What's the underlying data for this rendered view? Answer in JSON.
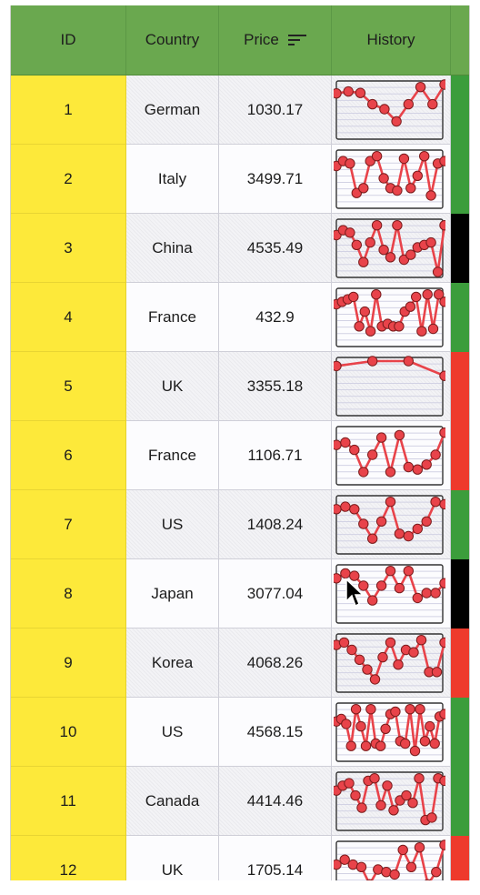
{
  "table": {
    "columns": [
      {
        "key": "id",
        "label": "ID"
      },
      {
        "key": "country",
        "label": "Country"
      },
      {
        "key": "price",
        "label": "Price",
        "sort_icon": "sort-lines-icon"
      },
      {
        "key": "history",
        "label": "History"
      }
    ],
    "colors": {
      "header_bg": "#6aa84f",
      "id_bg": "#fde93a",
      "spark_line": "#e8434a",
      "status_green": "#3c9d3c",
      "status_red": "#ee3a2c",
      "status_black": "#000000"
    },
    "rows": [
      {
        "id": "1",
        "country": "German",
        "price": "1030.17",
        "status": "green",
        "history": [
          0.82,
          0.86,
          0.83,
          0.6,
          0.5,
          0.25,
          0.6,
          0.95,
          0.6,
          1.0
        ]
      },
      {
        "id": "2",
        "country": "Italy",
        "price": "3499.71",
        "status": "green",
        "history": [
          0.75,
          0.85,
          0.8,
          0.2,
          0.3,
          0.85,
          0.95,
          0.5,
          0.3,
          0.25,
          0.9,
          0.3,
          0.55,
          0.95,
          0.15,
          0.8,
          0.85
        ]
      },
      {
        "id": "3",
        "country": "China",
        "price": "4535.49",
        "status": "black",
        "history": [
          0.75,
          0.85,
          0.8,
          0.55,
          0.2,
          0.6,
          0.95,
          0.45,
          0.3,
          0.95,
          0.25,
          0.35,
          0.5,
          0.55,
          0.6,
          0.0,
          0.95
        ]
      },
      {
        "id": "4",
        "country": "France",
        "price": "432.9",
        "status": "green",
        "history": [
          0.75,
          0.8,
          0.85,
          0.9,
          0.3,
          0.6,
          0.2,
          0.95,
          0.3,
          0.35,
          0.3,
          0.3,
          0.6,
          0.7,
          0.9,
          0.2,
          0.95,
          0.25,
          0.95,
          0.8
        ]
      },
      {
        "id": "5",
        "country": "UK",
        "price": "3355.18",
        "status": "red",
        "history": [
          0.9,
          1.0,
          1.0,
          0.7
        ]
      },
      {
        "id": "6",
        "country": "France",
        "price": "1106.71",
        "status": "red",
        "history": [
          0.7,
          0.75,
          0.6,
          0.15,
          0.5,
          0.85,
          0.15,
          0.9,
          0.25,
          0.2,
          0.3,
          0.5,
          0.95
        ]
      },
      {
        "id": "7",
        "country": "US",
        "price": "1408.24",
        "status": "green",
        "history": [
          0.8,
          0.85,
          0.8,
          0.5,
          0.2,
          0.55,
          0.95,
          0.3,
          0.25,
          0.4,
          0.55,
          0.95,
          0.9
        ]
      },
      {
        "id": "8",
        "country": "Japan",
        "price": "3077.04",
        "status": "black",
        "history": [
          0.8,
          0.9,
          0.85,
          0.65,
          0.35,
          0.65,
          0.95,
          0.6,
          0.95,
          0.4,
          0.5,
          0.5,
          0.7
        ]
      },
      {
        "id": "9",
        "country": "Korea",
        "price": "4068.26",
        "status": "red",
        "history": [
          0.85,
          0.9,
          0.75,
          0.55,
          0.35,
          0.15,
          0.6,
          0.9,
          0.45,
          0.75,
          0.7,
          0.95,
          0.3,
          0.3,
          0.9
        ]
      },
      {
        "id": "10",
        "country": "US",
        "price": "4568.15",
        "status": "green",
        "history": [
          0.7,
          0.75,
          0.65,
          0.2,
          0.95,
          0.6,
          0.2,
          0.95,
          0.25,
          0.2,
          0.55,
          0.85,
          0.9,
          0.3,
          0.25,
          0.95,
          0.1,
          0.95,
          0.3,
          0.6,
          0.25,
          0.8,
          0.85
        ]
      },
      {
        "id": "11",
        "country": "Canada",
        "price": "4414.46",
        "status": "green",
        "history": [
          0.7,
          0.8,
          0.85,
          0.6,
          0.35,
          0.9,
          0.95,
          0.4,
          0.8,
          0.3,
          0.5,
          0.6,
          0.45,
          0.95,
          0.1,
          0.15,
          0.95,
          0.9
        ]
      },
      {
        "id": "12",
        "country": "UK",
        "price": "1705.14",
        "status": "red",
        "history": [
          0.6,
          0.7,
          0.6,
          0.55,
          0.2,
          0.5,
          0.45,
          0.4,
          0.9,
          0.55,
          0.95,
          0.2,
          0.45,
          1.0
        ]
      }
    ]
  }
}
